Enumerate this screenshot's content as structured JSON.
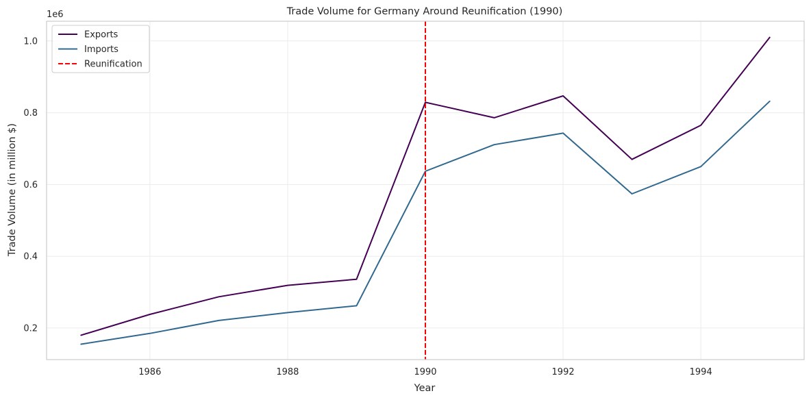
{
  "chart_data": {
    "type": "line",
    "title": "Trade Volume for Germany Around Reunification (1990)",
    "xlabel": "Year",
    "ylabel": "Trade Volume (in million $)",
    "offset_label": "1e6",
    "x": [
      1985,
      1986,
      1987,
      1988,
      1989,
      1990,
      1991,
      1992,
      1993,
      1994,
      1995
    ],
    "xlim": [
      1984.5,
      1995.5
    ],
    "ylim": [
      112000,
      1055000
    ],
    "x_ticks": [
      1986,
      1988,
      1990,
      1992,
      1994
    ],
    "y_ticks": [
      0.2,
      0.4,
      0.6,
      0.8,
      1.0
    ],
    "y_tick_labels": [
      "0.2",
      "0.4",
      "0.6",
      "0.8",
      "1.0"
    ],
    "y_tick_scale": 1000000,
    "grid": true,
    "legend_position": "top-left",
    "series": [
      {
        "name": "Exports",
        "color": "#440154",
        "values": [
          180000,
          238000,
          287000,
          319000,
          336000,
          829000,
          786000,
          847000,
          670000,
          765000,
          1010000
        ]
      },
      {
        "name": "Imports",
        "color": "#31688e",
        "values": [
          155000,
          185000,
          221000,
          243000,
          262000,
          637000,
          711000,
          743000,
          574000,
          650000,
          832000
        ]
      }
    ],
    "annotations": [
      {
        "type": "vline",
        "x": 1990,
        "name": "Reunification",
        "color": "#ff0000",
        "style": "dashed"
      }
    ]
  }
}
